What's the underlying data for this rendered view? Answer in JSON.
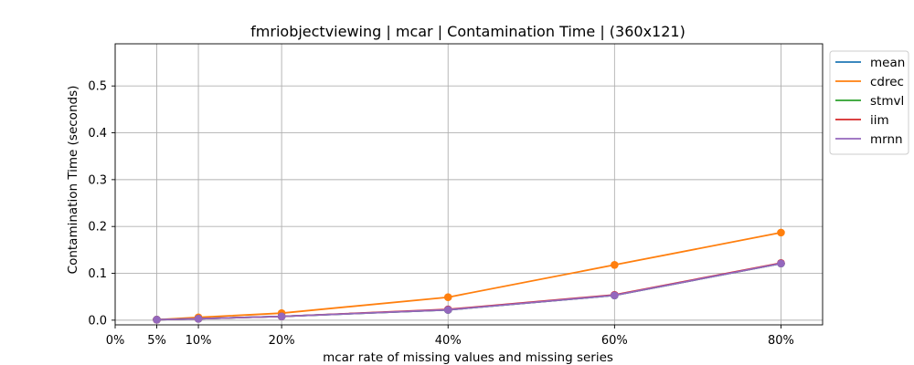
{
  "chart_data": {
    "type": "line",
    "title": "fmriobjectviewing | mcar | Contamination Time | (360x121)",
    "xlabel": "mcar rate of missing values and missing series",
    "ylabel": "Contamination Time (seconds)",
    "x_ticks": [
      0,
      5,
      10,
      20,
      40,
      60,
      80
    ],
    "x_tick_labels": [
      "0%",
      "5%",
      "10%",
      "20%",
      "40%",
      "60%",
      "80%"
    ],
    "y_ticks": [
      0.0,
      0.1,
      0.2,
      0.3,
      0.4,
      0.5
    ],
    "y_tick_labels": [
      "0.0",
      "0.1",
      "0.2",
      "0.3",
      "0.4",
      "0.5"
    ],
    "xlim": [
      0,
      85
    ],
    "ylim": [
      -0.01,
      0.59
    ],
    "grid": true,
    "legend_position": "outside-top-right",
    "x": [
      5,
      10,
      20,
      40,
      60,
      80
    ],
    "series": [
      {
        "name": "mean",
        "color": "#1f77b4",
        "values": [
          0.001,
          0.003,
          0.008,
          0.022,
          0.053,
          0.121
        ]
      },
      {
        "name": "cdrec",
        "color": "#ff7f0e",
        "values": [
          0.001,
          0.006,
          0.015,
          0.049,
          0.118,
          0.187
        ]
      },
      {
        "name": "stmvl",
        "color": "#2ca02c",
        "values": [
          0.001,
          0.003,
          0.008,
          0.022,
          0.053,
          0.121
        ]
      },
      {
        "name": "iim",
        "color": "#d62728",
        "values": [
          0.001,
          0.003,
          0.008,
          0.023,
          0.054,
          0.122
        ]
      },
      {
        "name": "mrnn",
        "color": "#9467bd",
        "values": [
          0.001,
          0.003,
          0.008,
          0.022,
          0.053,
          0.121
        ]
      }
    ]
  }
}
